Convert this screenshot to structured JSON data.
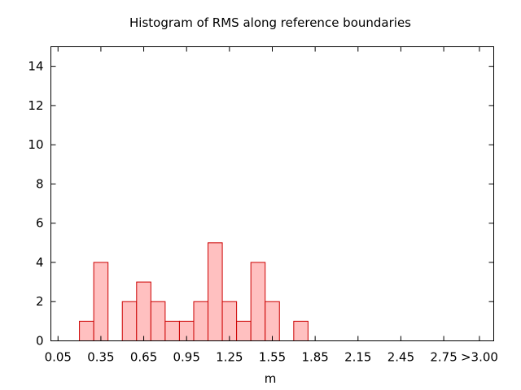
{
  "chart_data": {
    "type": "bar",
    "title": "Histogram of RMS along reference boundaries",
    "xlabel": "m",
    "ylabel": "",
    "bin_width": 0.1,
    "bins": [
      {
        "center": 0.25,
        "count": 1
      },
      {
        "center": 0.35,
        "count": 4
      },
      {
        "center": 0.55,
        "count": 2
      },
      {
        "center": 0.65,
        "count": 3
      },
      {
        "center": 0.75,
        "count": 2
      },
      {
        "center": 0.85,
        "count": 1
      },
      {
        "center": 0.95,
        "count": 1
      },
      {
        "center": 1.05,
        "count": 2
      },
      {
        "center": 1.15,
        "count": 5
      },
      {
        "center": 1.25,
        "count": 2
      },
      {
        "center": 1.35,
        "count": 1
      },
      {
        "center": 1.45,
        "count": 4
      },
      {
        "center": 1.55,
        "count": 2
      },
      {
        "center": 1.75,
        "count": 1
      }
    ],
    "xlim": [
      0.0,
      3.1
    ],
    "ylim": [
      0,
      15
    ],
    "x_ticks": [
      {
        "value": 0.05,
        "label": "0.05"
      },
      {
        "value": 0.35,
        "label": "0.35"
      },
      {
        "value": 0.65,
        "label": "0.65"
      },
      {
        "value": 0.95,
        "label": "0.95"
      },
      {
        "value": 1.25,
        "label": "1.25"
      },
      {
        "value": 1.55,
        "label": "1.55"
      },
      {
        "value": 1.85,
        "label": "1.85"
      },
      {
        "value": 2.15,
        "label": "2.15"
      },
      {
        "value": 2.45,
        "label": "2.45"
      },
      {
        "value": 2.75,
        "label": "2.75"
      },
      {
        "value": 3.0,
        "label": ">3.00"
      }
    ],
    "y_ticks": [
      {
        "value": 0,
        "label": "0"
      },
      {
        "value": 2,
        "label": "2"
      },
      {
        "value": 4,
        "label": "4"
      },
      {
        "value": 6,
        "label": "6"
      },
      {
        "value": 8,
        "label": "8"
      },
      {
        "value": 10,
        "label": "10"
      },
      {
        "value": 12,
        "label": "12"
      },
      {
        "value": 14,
        "label": "14"
      }
    ],
    "grid": false,
    "legend": "none",
    "colors": {
      "bar_fill": "#ffc0c0",
      "bar_stroke": "#cc0000",
      "axis": "#000000"
    }
  }
}
